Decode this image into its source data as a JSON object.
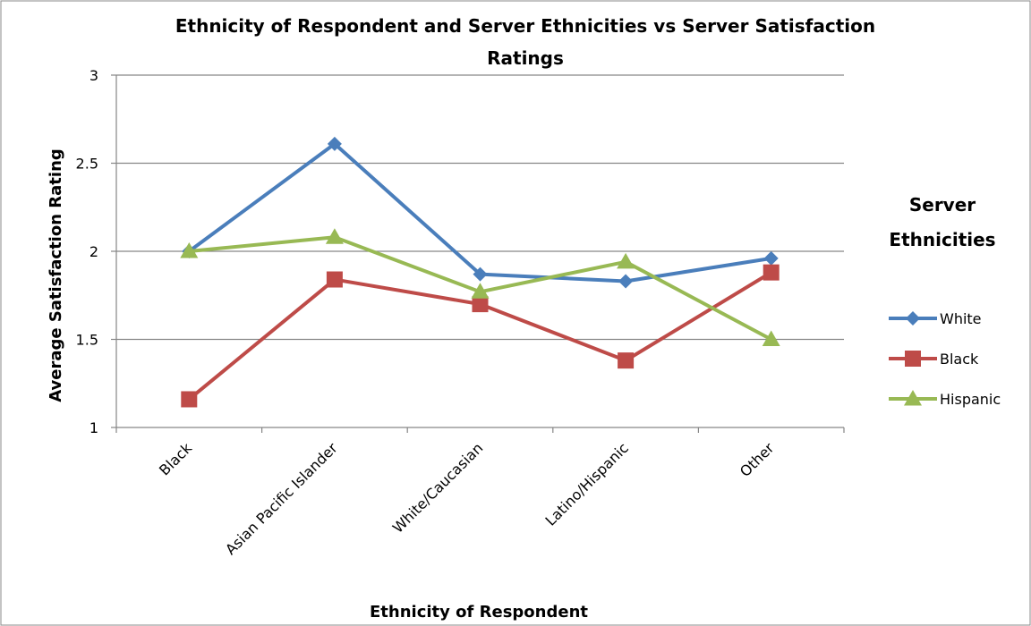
{
  "chart_data": {
    "type": "line",
    "title": "Ethnicity of Respondent and Server Ethnicities vs Server Satisfaction Ratings",
    "xlabel": "Ethnicity of Respondent",
    "ylabel": "Average Satisfaction Rating",
    "ylim": [
      1,
      3
    ],
    "y_ticks": [
      "1",
      "1.5",
      "2",
      "2.5",
      "3"
    ],
    "grid": true,
    "legend_title": "Server Ethnicities",
    "legend_position": "right",
    "categories": [
      "Black",
      "Asian Pacific Islander",
      "White/Caucasian",
      "Latino/Hispanic",
      "Other"
    ],
    "series": [
      {
        "name": "White",
        "color": "#4a7ebb",
        "marker": "diamond",
        "values": [
          2.0,
          2.61,
          1.87,
          1.83,
          1.96
        ]
      },
      {
        "name": "Black",
        "color": "#be4b48",
        "marker": "square",
        "values": [
          1.16,
          1.84,
          1.7,
          1.38,
          1.88
        ]
      },
      {
        "name": "Hispanic",
        "color": "#98b954",
        "marker": "triangle",
        "values": [
          2.0,
          2.08,
          1.77,
          1.94,
          1.5
        ]
      }
    ]
  }
}
